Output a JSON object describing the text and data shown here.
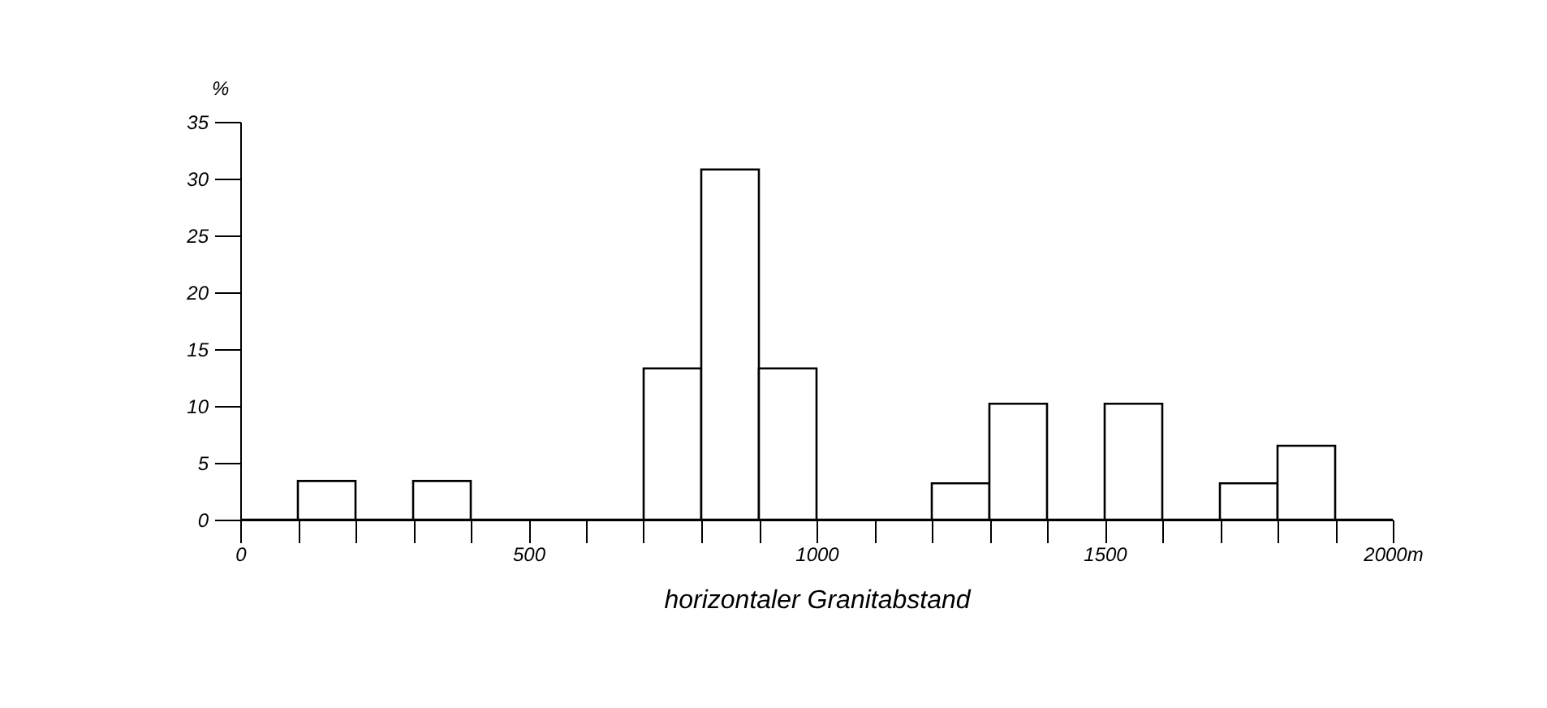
{
  "chart_data": {
    "type": "histogram",
    "xlabel": "horizontaler Granitabstand",
    "ylabel": "%",
    "bins": [
      0,
      100,
      200,
      300,
      400,
      500,
      600,
      700,
      800,
      900,
      1000,
      1100,
      1200,
      1300,
      1400,
      1500,
      1600,
      1700,
      1800,
      1900,
      2000
    ],
    "values": [
      0,
      3.4,
      0,
      3.4,
      0,
      0,
      0,
      13.3,
      30.8,
      13.3,
      0,
      0,
      3.2,
      10.2,
      0,
      10.2,
      0,
      3.2,
      6.5,
      0
    ],
    "xlim": [
      0,
      2000
    ],
    "xticks": [
      0,
      {
        "value": 100,
        "label": null
      },
      {
        "value": 200,
        "label": null
      },
      {
        "value": 300,
        "label": null
      },
      {
        "value": 400,
        "label": null
      },
      500,
      {
        "value": 600,
        "label": null
      },
      {
        "value": 700,
        "label": null
      },
      {
        "value": 800,
        "label": null
      },
      {
        "value": 900,
        "label": null
      },
      1000,
      {
        "value": 1100,
        "label": null
      },
      {
        "value": 1200,
        "label": null
      },
      {
        "value": 1300,
        "label": null
      },
      {
        "value": 1400,
        "label": null
      },
      1500,
      {
        "value": 1600,
        "label": null
      },
      {
        "value": 1700,
        "label": null
      },
      {
        "value": 1800,
        "label": null
      },
      {
        "value": 1900,
        "label": null
      },
      {
        "value": 2000,
        "label": "2000m"
      }
    ],
    "ylim": [
      0,
      35
    ],
    "yticks": [
      0,
      5,
      10,
      15,
      20,
      25,
      30,
      35
    ],
    "grid": false
  }
}
